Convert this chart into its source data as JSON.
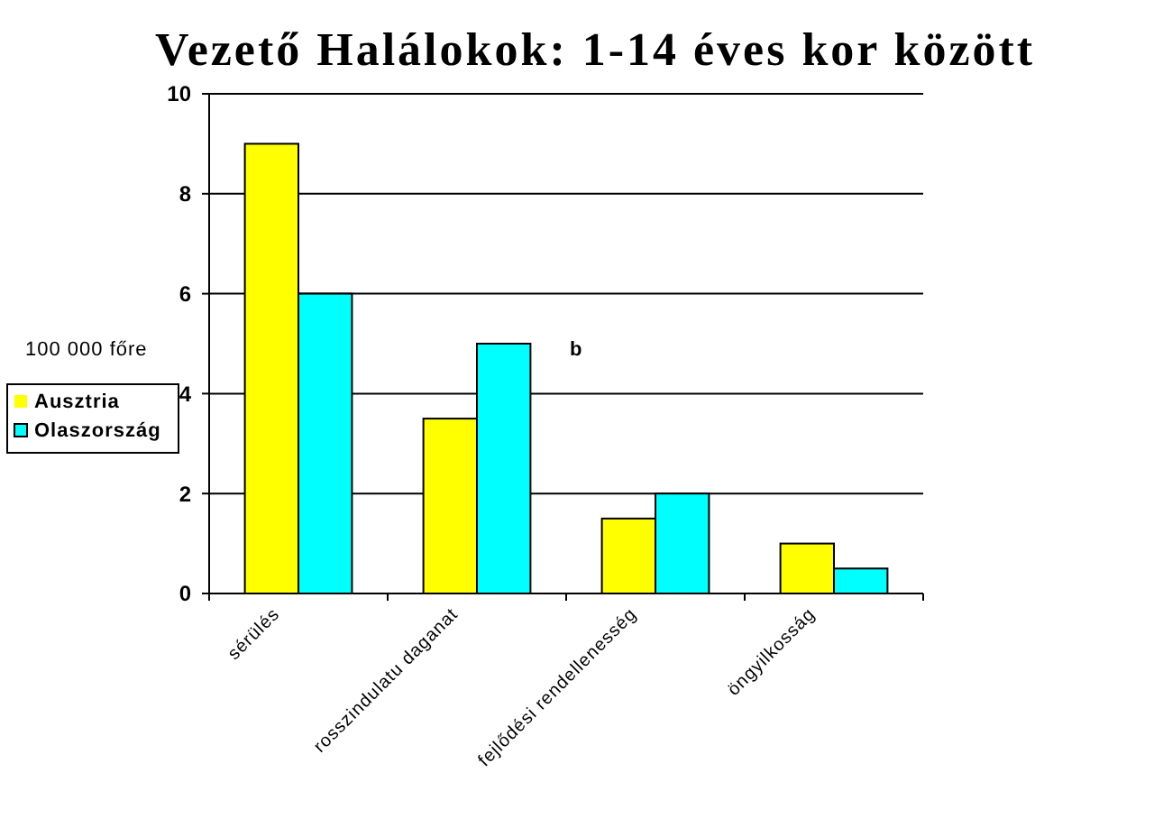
{
  "chart_data": {
    "type": "bar",
    "title": "Vezető Halálokok: 1-14 éves kor között",
    "ylabel": "100 000 főre",
    "annotations": [
      "b"
    ],
    "categories": [
      "sérülés",
      "rosszindulatu daganat",
      "fejlődési rendellenesség",
      "öngyilkosság"
    ],
    "series": [
      {
        "name": "Ausztria",
        "color": "#ffff00",
        "values": [
          9,
          3.5,
          1.5,
          1
        ]
      },
      {
        "name": "Olaszország",
        "color": "#00ffff",
        "values": [
          6,
          5,
          2,
          0.5
        ]
      }
    ],
    "ylim": [
      0,
      10
    ],
    "yticks": [
      0,
      2,
      4,
      6,
      8,
      10
    ],
    "grid": "y",
    "legend": "left"
  }
}
